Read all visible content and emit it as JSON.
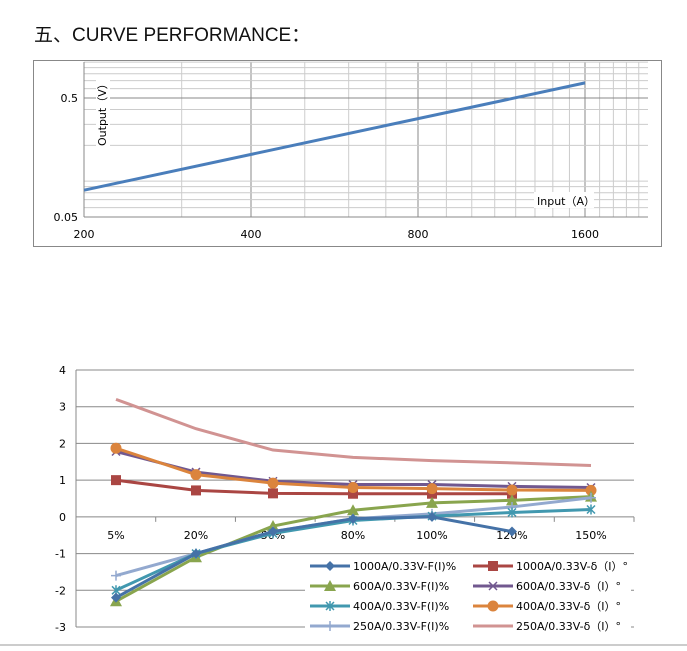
{
  "heading": "五、CURVE PERFORMANCE：",
  "chart_data": [
    {
      "type": "line",
      "title": "",
      "xlabel": "Input（A）",
      "ylabel": "Output（V）",
      "xscale": "log",
      "yscale": "log",
      "xlim": [
        200,
        2200
      ],
      "ylim": [
        0.05,
        1.0
      ],
      "xticks": [
        "200",
        "400",
        "800",
        "1600"
      ],
      "yticks": [
        "0.05",
        "0.5"
      ],
      "series": [
        {
          "name": "Output",
          "color": "#4a7ebb",
          "x": [
            200,
            1600
          ],
          "y": [
            0.084,
            0.67
          ]
        }
      ],
      "grid": true
    },
    {
      "type": "line",
      "title": "",
      "xlabel": "",
      "ylabel": "",
      "ylim": [
        -3,
        4
      ],
      "yticks": [
        "4",
        "3",
        "2",
        "1",
        "0",
        "-1",
        "-2",
        "-3"
      ],
      "categories": [
        "5%",
        "20%",
        "50%",
        "80%",
        "100%",
        "120%",
        "150%"
      ],
      "legend": "bottom-right",
      "grid": true,
      "series": [
        {
          "name": "1000A/0.33V-F(I)%",
          "color": "#4572a7",
          "marker": "diamond",
          "values": [
            -2.2,
            -1.0,
            -0.4,
            -0.05,
            0.0,
            -0.4,
            null
          ]
        },
        {
          "name": "1000A/0.33V-δ（I）°",
          "color": "#aa4643",
          "marker": "square",
          "values": [
            1.0,
            0.72,
            0.64,
            0.63,
            0.63,
            0.63,
            null
          ]
        },
        {
          "name": "600A/0.33V-F(I)%",
          "color": "#89a54e",
          "marker": "triangle",
          "values": [
            -2.3,
            -1.1,
            -0.25,
            0.18,
            0.38,
            0.45,
            0.55
          ]
        },
        {
          "name": "600A/0.33V-δ（I）°",
          "color": "#71588f",
          "marker": "x",
          "values": [
            1.78,
            1.22,
            0.97,
            0.88,
            0.88,
            0.83,
            0.8
          ]
        },
        {
          "name": "400A/0.33V-F(I)%",
          "color": "#4198af",
          "marker": "star",
          "values": [
            -2.0,
            -1.0,
            -0.45,
            -0.1,
            0.02,
            0.12,
            0.2
          ]
        },
        {
          "name": "400A/0.33V-δ（I）°",
          "color": "#db843d",
          "marker": "circle",
          "values": [
            1.87,
            1.15,
            0.92,
            0.8,
            0.77,
            0.73,
            0.72
          ]
        },
        {
          "name": "250A/0.33V-F(I)%",
          "color": "#93a9cf",
          "marker": "plus",
          "values": [
            -1.6,
            -1.0,
            -0.4,
            -0.05,
            0.08,
            0.27,
            0.52
          ]
        },
        {
          "name": "250A/0.33V-δ（I）°",
          "color": "#d19392",
          "marker": "none",
          "values": [
            3.2,
            2.4,
            1.82,
            1.62,
            1.53,
            1.47,
            1.4
          ]
        }
      ]
    }
  ]
}
